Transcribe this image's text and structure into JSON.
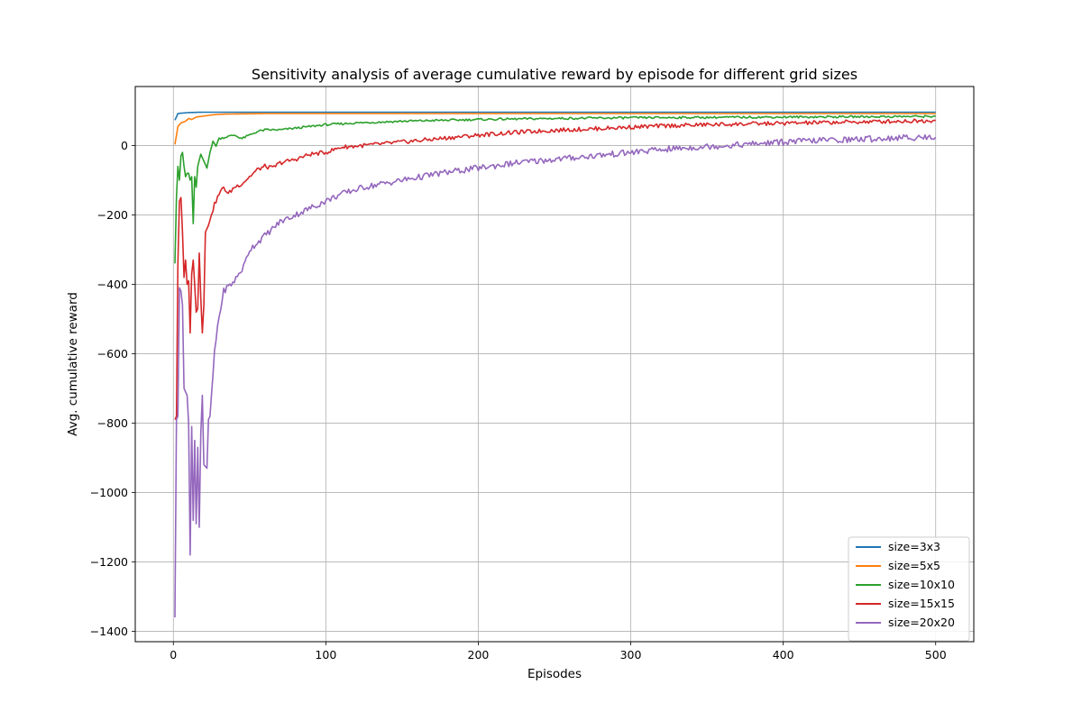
{
  "chart_data": {
    "type": "line",
    "title": "Sensitivity analysis of average cumulative reward by episode for different grid sizes",
    "xlabel": "Episodes",
    "ylabel": "Avg. cumulative reward",
    "xlim": [
      -25,
      525
    ],
    "ylim": [
      -1430,
      170
    ],
    "xticks": [
      0,
      100,
      200,
      300,
      400,
      500
    ],
    "yticks": [
      -1400,
      -1200,
      -1000,
      -800,
      -600,
      -400,
      -200,
      0
    ],
    "ytick_labels": [
      "−1400",
      "−1200",
      "−1000",
      "−800",
      "−600",
      "−400",
      "−200",
      "0"
    ],
    "grid": true,
    "legend_position": "lower-right",
    "series": [
      {
        "name": "size=3x3",
        "color": "#1f77b4",
        "points": [
          [
            1,
            73
          ],
          [
            3,
            92
          ],
          [
            5,
            93
          ],
          [
            10,
            95
          ],
          [
            20,
            96
          ],
          [
            50,
            96
          ],
          [
            100,
            96
          ],
          [
            200,
            96
          ],
          [
            300,
            96
          ],
          [
            400,
            96
          ],
          [
            500,
            96
          ]
        ]
      },
      {
        "name": "size=5x5",
        "color": "#ff7f0e",
        "points": [
          [
            1,
            3
          ],
          [
            3,
            55
          ],
          [
            5,
            65
          ],
          [
            8,
            70
          ],
          [
            10,
            78
          ],
          [
            12,
            75
          ],
          [
            15,
            82
          ],
          [
            20,
            85
          ],
          [
            25,
            88
          ],
          [
            30,
            90
          ],
          [
            40,
            91
          ],
          [
            60,
            92
          ],
          [
            100,
            92
          ],
          [
            200,
            92
          ],
          [
            300,
            92
          ],
          [
            400,
            92
          ],
          [
            500,
            92
          ]
        ]
      },
      {
        "name": "size=10x10",
        "color": "#2ca02c",
        "points": [
          [
            1,
            -340
          ],
          [
            2,
            -150
          ],
          [
            3,
            -60
          ],
          [
            4,
            -100
          ],
          [
            5,
            -30
          ],
          [
            6,
            -20
          ],
          [
            7,
            -60
          ],
          [
            8,
            -90
          ],
          [
            9,
            -80
          ],
          [
            10,
            -80
          ],
          [
            11,
            -100
          ],
          [
            12,
            -90
          ],
          [
            13,
            -225
          ],
          [
            14,
            -90
          ],
          [
            15,
            -120
          ],
          [
            16,
            -60
          ],
          [
            18,
            -25
          ],
          [
            20,
            -45
          ],
          [
            22,
            -65
          ],
          [
            24,
            -20
          ],
          [
            26,
            10
          ],
          [
            28,
            0
          ],
          [
            30,
            20
          ],
          [
            35,
            25
          ],
          [
            40,
            30
          ],
          [
            45,
            20
          ],
          [
            50,
            30
          ],
          [
            55,
            40
          ],
          [
            60,
            45
          ],
          [
            70,
            45
          ],
          [
            80,
            50
          ],
          [
            90,
            55
          ],
          [
            100,
            60
          ],
          [
            120,
            65
          ],
          [
            150,
            70
          ],
          [
            200,
            75
          ],
          [
            250,
            78
          ],
          [
            300,
            80
          ],
          [
            400,
            82
          ],
          [
            500,
            84
          ]
        ]
      },
      {
        "name": "size=15x15",
        "color": "#d62728",
        "points": [
          [
            1,
            -790
          ],
          [
            2,
            -780
          ],
          [
            3,
            -340
          ],
          [
            4,
            -160
          ],
          [
            5,
            -150
          ],
          [
            6,
            -250
          ],
          [
            7,
            -380
          ],
          [
            8,
            -330
          ],
          [
            9,
            -400
          ],
          [
            10,
            -390
          ],
          [
            11,
            -540
          ],
          [
            12,
            -370
          ],
          [
            13,
            -330
          ],
          [
            14,
            -400
          ],
          [
            15,
            -480
          ],
          [
            16,
            -470
          ],
          [
            17,
            -310
          ],
          [
            18,
            -440
          ],
          [
            19,
            -540
          ],
          [
            20,
            -460
          ],
          [
            21,
            -250
          ],
          [
            23,
            -230
          ],
          [
            25,
            -200
          ],
          [
            27,
            -170
          ],
          [
            30,
            -140
          ],
          [
            33,
            -120
          ],
          [
            36,
            -140
          ],
          [
            40,
            -120
          ],
          [
            45,
            -110
          ],
          [
            50,
            -90
          ],
          [
            55,
            -70
          ],
          [
            60,
            -60
          ],
          [
            65,
            -65
          ],
          [
            70,
            -50
          ],
          [
            80,
            -40
          ],
          [
            90,
            -25
          ],
          [
            100,
            -20
          ],
          [
            110,
            -5
          ],
          [
            125,
            0
          ],
          [
            150,
            10
          ],
          [
            175,
            20
          ],
          [
            200,
            30
          ],
          [
            225,
            38
          ],
          [
            250,
            44
          ],
          [
            275,
            48
          ],
          [
            300,
            53
          ],
          [
            325,
            57
          ],
          [
            350,
            60
          ],
          [
            375,
            62
          ],
          [
            400,
            64
          ],
          [
            425,
            66
          ],
          [
            450,
            68
          ],
          [
            475,
            70
          ],
          [
            500,
            72
          ]
        ]
      },
      {
        "name": "size=20x20",
        "color": "#9467bd",
        "points": [
          [
            1,
            -1360
          ],
          [
            2,
            -790
          ],
          [
            3,
            -780
          ],
          [
            4,
            -410
          ],
          [
            5,
            -420
          ],
          [
            6,
            -460
          ],
          [
            7,
            -700
          ],
          [
            8,
            -710
          ],
          [
            9,
            -720
          ],
          [
            10,
            -800
          ],
          [
            11,
            -1180
          ],
          [
            12,
            -810
          ],
          [
            13,
            -1080
          ],
          [
            14,
            -850
          ],
          [
            15,
            -1090
          ],
          [
            16,
            -870
          ],
          [
            17,
            -1100
          ],
          [
            18,
            -830
          ],
          [
            19,
            -720
          ],
          [
            20,
            -920
          ],
          [
            22,
            -930
          ],
          [
            23,
            -790
          ],
          [
            24,
            -780
          ],
          [
            25,
            -720
          ],
          [
            27,
            -600
          ],
          [
            29,
            -520
          ],
          [
            31,
            -470
          ],
          [
            33,
            -420
          ],
          [
            35,
            -410
          ],
          [
            38,
            -400
          ],
          [
            40,
            -390
          ],
          [
            43,
            -370
          ],
          [
            46,
            -350
          ],
          [
            50,
            -300
          ],
          [
            55,
            -280
          ],
          [
            60,
            -260
          ],
          [
            65,
            -240
          ],
          [
            70,
            -220
          ],
          [
            80,
            -200
          ],
          [
            90,
            -180
          ],
          [
            100,
            -160
          ],
          [
            110,
            -140
          ],
          [
            125,
            -120
          ],
          [
            150,
            -100
          ],
          [
            175,
            -80
          ],
          [
            200,
            -65
          ],
          [
            225,
            -50
          ],
          [
            250,
            -40
          ],
          [
            275,
            -30
          ],
          [
            300,
            -20
          ],
          [
            325,
            -10
          ],
          [
            350,
            -3
          ],
          [
            375,
            3
          ],
          [
            400,
            10
          ],
          [
            425,
            15
          ],
          [
            450,
            18
          ],
          [
            475,
            22
          ],
          [
            500,
            24
          ]
        ]
      }
    ]
  }
}
